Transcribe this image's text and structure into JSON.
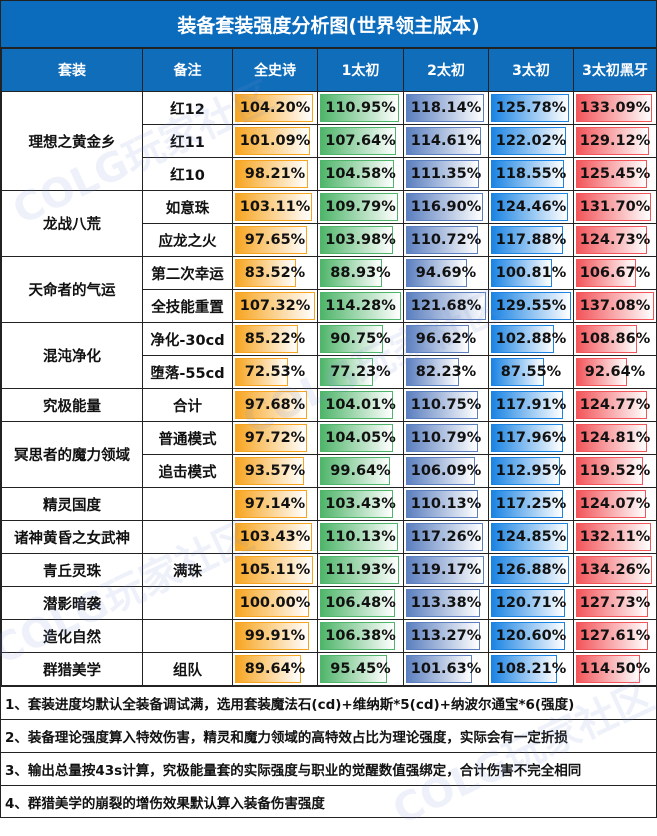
{
  "title": "装备套装强度分析图(世界领主版本)",
  "headers": [
    "套装",
    "备注",
    "全史诗",
    "1太初",
    "2太初",
    "3太初",
    "3太初黑牙"
  ],
  "column_colors": [
    "#f7a521",
    "#4fb56a",
    "#5b7fbf",
    "#1b84e3",
    "#f2555a"
  ],
  "groups": [
    {
      "set": "理想之黄金乡",
      "rows": [
        {
          "note": "红12",
          "values": [
            "104.20%",
            "110.95%",
            "118.14%",
            "125.78%",
            "133.09%"
          ]
        },
        {
          "note": "红11",
          "values": [
            "101.09%",
            "107.64%",
            "114.61%",
            "122.02%",
            "129.12%"
          ]
        },
        {
          "note": "红10",
          "values": [
            "98.21%",
            "104.58%",
            "111.35%",
            "118.55%",
            "125.45%"
          ]
        }
      ]
    },
    {
      "set": "龙战八荒",
      "rows": [
        {
          "note": "如意珠",
          "values": [
            "103.11%",
            "109.79%",
            "116.90%",
            "124.46%",
            "131.70%"
          ]
        },
        {
          "note": "应龙之火",
          "values": [
            "97.65%",
            "103.98%",
            "110.72%",
            "117.88%",
            "124.73%"
          ]
        }
      ]
    },
    {
      "set": "天命者的气运",
      "rows": [
        {
          "note": "第二次幸运",
          "values": [
            "83.52%",
            "88.93%",
            "94.69%",
            "100.81%",
            "106.67%"
          ]
        },
        {
          "note": "全技能重置",
          "values": [
            "107.32%",
            "114.28%",
            "121.68%",
            "129.55%",
            "137.08%"
          ]
        }
      ]
    },
    {
      "set": "混沌净化",
      "rows": [
        {
          "note": "净化-30cd",
          "values": [
            "85.22%",
            "90.75%",
            "96.62%",
            "102.88%",
            "108.86%"
          ]
        },
        {
          "note": "堕落-55cd",
          "values": [
            "72.53%",
            "77.23%",
            "82.23%",
            "87.55%",
            "92.64%"
          ]
        }
      ]
    },
    {
      "set": "究极能量",
      "rows": [
        {
          "note": "合计",
          "values": [
            "97.68%",
            "104.01%",
            "110.75%",
            "117.91%",
            "124.77%"
          ]
        }
      ]
    },
    {
      "set": "冥思者的魔力领域",
      "rows": [
        {
          "note": "普通模式",
          "values": [
            "97.72%",
            "104.05%",
            "110.79%",
            "117.96%",
            "124.81%"
          ]
        },
        {
          "note": "追击模式",
          "values": [
            "93.57%",
            "99.64%",
            "106.09%",
            "112.95%",
            "119.52%"
          ]
        }
      ]
    },
    {
      "set": "精灵国度",
      "rows": [
        {
          "note": "",
          "values": [
            "97.14%",
            "103.43%",
            "110.13%",
            "117.25%",
            "124.07%"
          ]
        }
      ]
    },
    {
      "set": "诸神黄昏之女武神",
      "rows": [
        {
          "note": "",
          "values": [
            "103.43%",
            "110.13%",
            "117.26%",
            "124.85%",
            "132.11%"
          ]
        }
      ]
    },
    {
      "set": "青丘灵珠",
      "rows": [
        {
          "note": "满珠",
          "values": [
            "105.11%",
            "111.93%",
            "119.17%",
            "126.88%",
            "134.26%"
          ]
        }
      ]
    },
    {
      "set": "潜影暗袭",
      "rows": [
        {
          "note": "",
          "values": [
            "100.00%",
            "106.48%",
            "113.38%",
            "120.71%",
            "127.73%"
          ]
        }
      ]
    },
    {
      "set": "造化自然",
      "rows": [
        {
          "note": "",
          "values": [
            "99.91%",
            "106.38%",
            "113.27%",
            "120.60%",
            "127.61%"
          ]
        }
      ]
    },
    {
      "set": "群猎美学",
      "rows": [
        {
          "note": "组队",
          "values": [
            "89.64%",
            "95.45%",
            "101.63%",
            "108.21%",
            "114.50%"
          ]
        }
      ]
    }
  ],
  "notes": [
    "1、套装进度均默认全装备调试满，选用套装魔法石(cd)+维纳斯*5(cd)+纳波尔通宝*6(强度)",
    "2、装备理论强度算入特效伤害，精灵和魔力领域的高特效占比为理论强度，实际会有一定折损",
    "3、输出总量按43s计算，究极能量套的实际强度与职业的觉醒数值强绑定，合计伤害不完全相同",
    "4、群猎美学的崩裂的增伤效果默认算入装备伤害强度"
  ],
  "watermark": "COLG玩家社区"
}
